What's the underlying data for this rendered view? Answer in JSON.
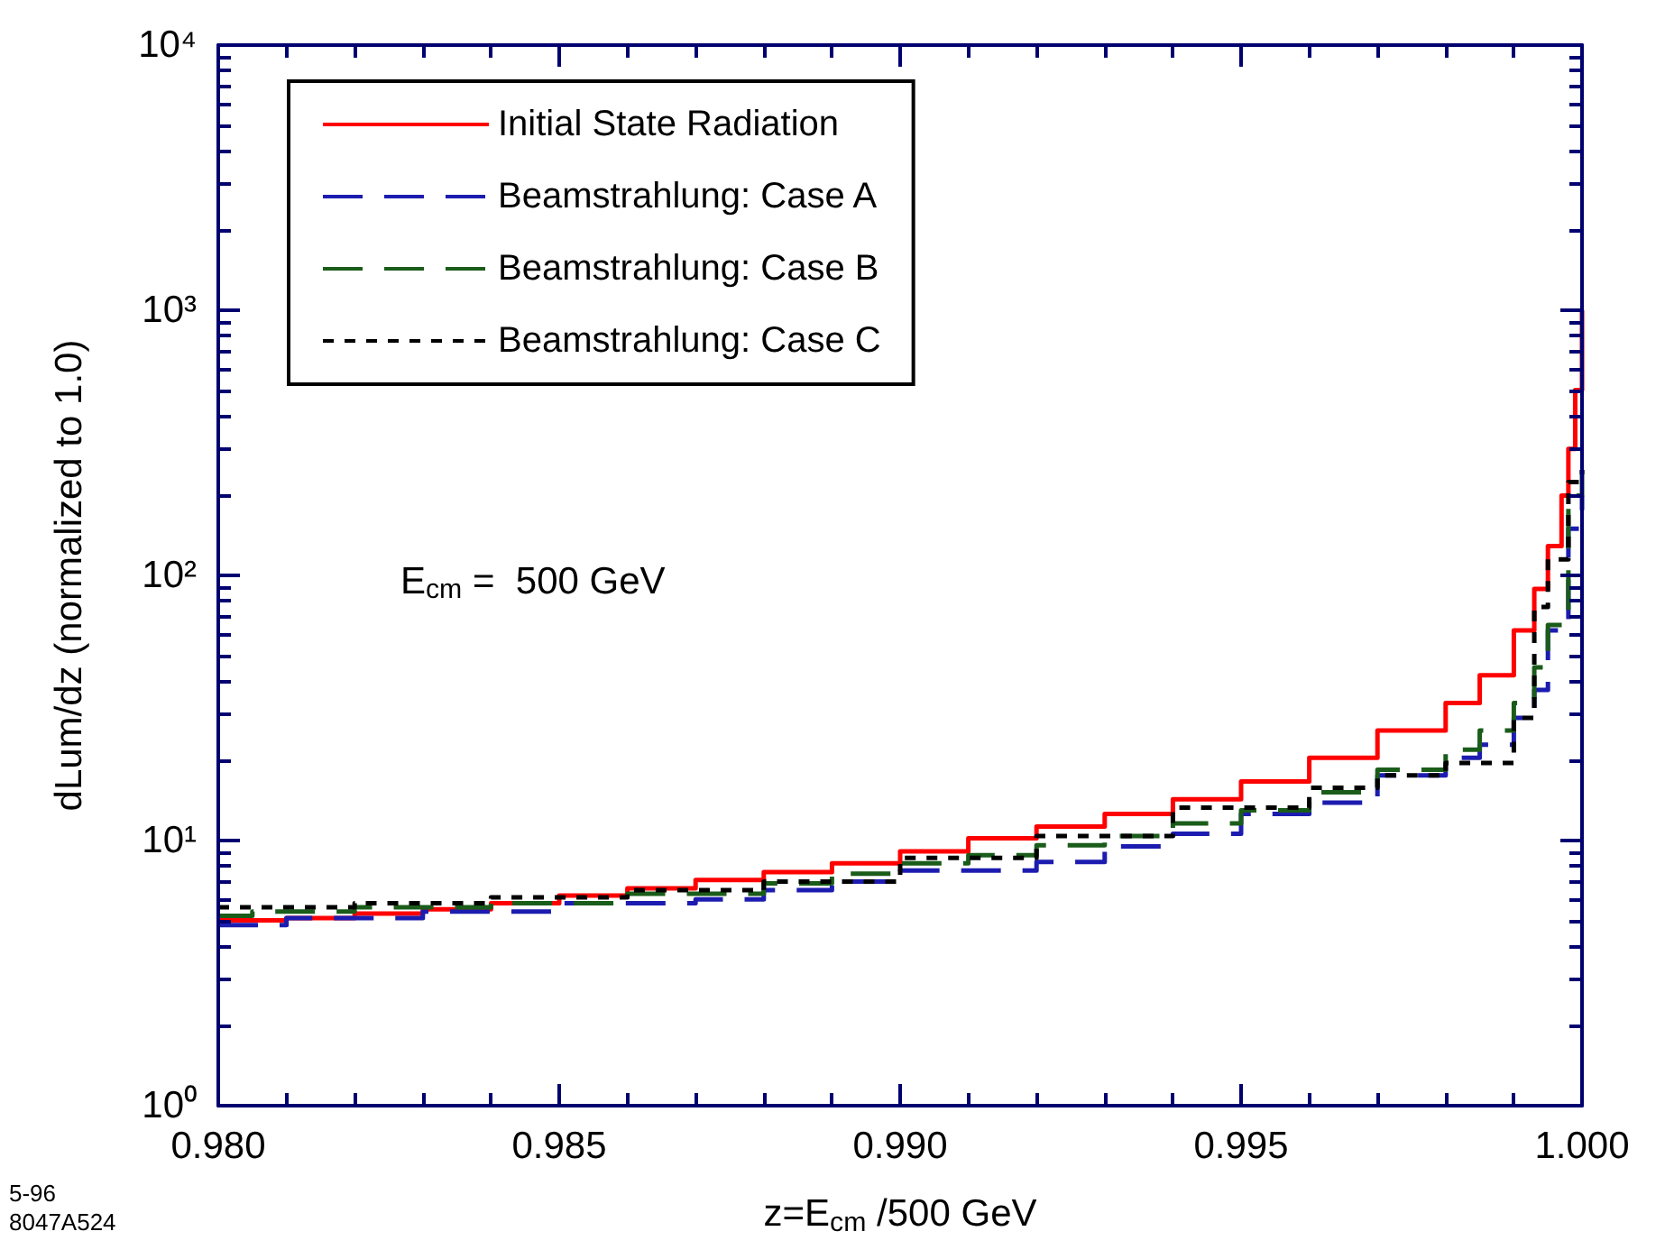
{
  "chart_data": {
    "type": "step",
    "xlabel": "z=E$_{cm}$ /500 GeV",
    "ylabel": "dLum/dz (normalized to 1.0)",
    "annotations": [
      "E$_{cm}$ =  500 GeV",
      "5-96",
      "8047A524"
    ],
    "log": "y",
    "grid": false,
    "legend": "top left",
    "marker": "none",
    "xlim": [
      0.98,
      1.0
    ],
    "xticks": [
      {
        "value": 0.98,
        "label": "0.980"
      },
      {
        "value": 0.985,
        "label": "0.985"
      },
      {
        "value": 0.99,
        "label": "0.990"
      },
      {
        "value": 0.995,
        "label": "0.995"
      },
      {
        "value": 1.0,
        "label": "1.000"
      }
    ],
    "ylim": [
      1,
      10000
    ],
    "yticks": [
      {
        "value": 1,
        "label": "10⁰"
      },
      {
        "value": 10,
        "label": "10¹"
      },
      {
        "value": 100,
        "label": "10²"
      },
      {
        "value": 1000,
        "label": "10³"
      },
      {
        "value": 10000,
        "label": "10⁴"
      }
    ],
    "series": [
      {
        "name": "Initial State Radiation",
        "color": "#ff0000",
        "line_style": "solid",
        "x": [
          0.98,
          0.981,
          0.982,
          0.983,
          0.984,
          0.985,
          0.986,
          0.987,
          0.988,
          0.989,
          0.99,
          0.991,
          0.992,
          0.993,
          0.994,
          0.995,
          0.996,
          0.997,
          0.998,
          0.9985,
          0.999,
          0.9993,
          0.9995,
          0.9997,
          0.9998,
          0.9999,
          1.0
        ],
        "values": [
          5.0,
          5.1,
          5.3,
          5.5,
          5.8,
          6.2,
          6.6,
          7.1,
          7.6,
          8.2,
          9.1,
          10.2,
          11.3,
          12.6,
          14.3,
          16.7,
          20.5,
          26,
          33,
          42,
          62,
          89,
          129,
          200,
          300,
          500,
          1000
        ]
      },
      {
        "name": "Beamstrahlung: Case A",
        "color": "#1c1cb0",
        "line_style": "dashed",
        "x": [
          0.98,
          0.981,
          0.983,
          0.985,
          0.987,
          0.988,
          0.989,
          0.99,
          0.992,
          0.993,
          0.994,
          0.995,
          0.996,
          0.997,
          0.998,
          0.9985,
          0.999,
          0.9993,
          0.9995,
          0.9998,
          1.0
        ],
        "values": [
          4.8,
          5.1,
          5.4,
          5.8,
          6.0,
          6.5,
          7.0,
          7.7,
          8.3,
          9.5,
          10.6,
          12.6,
          13.9,
          17.6,
          20.5,
          23,
          29,
          37,
          62,
          150,
          200
        ]
      },
      {
        "name": "Beamstrahlung: Case B",
        "color": "#1a5c1a",
        "line_style": "dashed",
        "x": [
          0.98,
          0.9805,
          0.982,
          0.984,
          0.986,
          0.988,
          0.989,
          0.99,
          0.991,
          0.992,
          0.993,
          0.994,
          0.995,
          0.996,
          0.997,
          0.998,
          0.9985,
          0.999,
          0.9993,
          0.9995,
          0.9998,
          1.0
        ],
        "values": [
          5.2,
          5.4,
          5.6,
          5.8,
          6.3,
          6.9,
          7.5,
          8.2,
          8.8,
          9.6,
          10.4,
          11.6,
          13.0,
          15.2,
          18.5,
          22,
          26,
          33,
          45,
          65,
          200,
          250
        ]
      },
      {
        "name": "Beamstrahlung: Case C",
        "color": "#000000",
        "line_style": "dotted",
        "x": [
          0.98,
          0.982,
          0.984,
          0.986,
          0.988,
          0.99,
          0.992,
          0.994,
          0.996,
          0.997,
          0.998,
          0.999,
          0.9993,
          0.9995,
          0.9998,
          1.0
        ],
        "values": [
          5.6,
          5.8,
          6.1,
          6.5,
          7.0,
          8.6,
          10.4,
          13.3,
          15.8,
          17.6,
          19.6,
          29,
          76,
          115,
          225,
          250
        ]
      }
    ]
  }
}
